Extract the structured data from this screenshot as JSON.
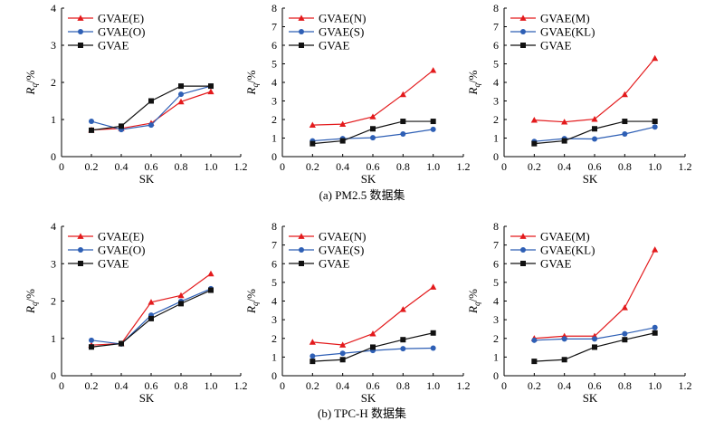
{
  "captions": {
    "a": "(a) PM2.5 数据集",
    "b": "(b) TPC-H 数据集"
  },
  "colors": {
    "red": "#e31a1c",
    "blue": "#2e5fb5",
    "black": "#111111"
  },
  "chart_data": [
    {
      "type": "line",
      "xlabel": "SK",
      "ylabel": "R_q/%",
      "xlim": [
        0,
        1.2
      ],
      "ylim": [
        0,
        4
      ],
      "xticks": [
        "0",
        "0.2",
        "0.4",
        "0.6",
        "0.8",
        "1.0",
        "1.2"
      ],
      "yticks": [
        "0",
        "1",
        "2",
        "3",
        "4"
      ],
      "legend": "top-left",
      "x": [
        0.2,
        0.4,
        0.6,
        0.8,
        1.0
      ],
      "series": [
        {
          "name": "GVAE(E)",
          "color": "#e31a1c",
          "marker": "triangle",
          "values": [
            0.72,
            0.76,
            0.9,
            1.48,
            1.75
          ]
        },
        {
          "name": "GVAE(O)",
          "color": "#2e5fb5",
          "marker": "circle",
          "values": [
            0.95,
            0.73,
            0.85,
            1.68,
            1.9
          ]
        },
        {
          "name": "GVAE",
          "color": "#111111",
          "marker": "square",
          "values": [
            0.71,
            0.82,
            1.5,
            1.9,
            1.9
          ]
        }
      ]
    },
    {
      "type": "line",
      "xlabel": "SK",
      "ylabel": "R_q/%",
      "xlim": [
        0,
        1.2
      ],
      "ylim": [
        0,
        8
      ],
      "xticks": [
        "0",
        "0.2",
        "0.4",
        "0.6",
        "0.8",
        "1.0",
        "1.2"
      ],
      "yticks": [
        "0",
        "1",
        "2",
        "3",
        "4",
        "5",
        "6",
        "7",
        "8"
      ],
      "legend": "top-left",
      "x": [
        0.2,
        0.4,
        0.6,
        0.8,
        1.0
      ],
      "series": [
        {
          "name": "GVAE(N)",
          "color": "#e31a1c",
          "marker": "triangle",
          "values": [
            1.7,
            1.75,
            2.15,
            3.35,
            4.65
          ]
        },
        {
          "name": "GVAE(S)",
          "color": "#2e5fb5",
          "marker": "circle",
          "values": [
            0.85,
            0.97,
            1.02,
            1.22,
            1.47
          ]
        },
        {
          "name": "GVAE",
          "color": "#111111",
          "marker": "square",
          "values": [
            0.7,
            0.85,
            1.5,
            1.9,
            1.9
          ]
        }
      ]
    },
    {
      "type": "line",
      "xlabel": "SK",
      "ylabel": "R_q/%",
      "xlim": [
        0,
        1.2
      ],
      "ylim": [
        0,
        8
      ],
      "xticks": [
        "0",
        "0.2",
        "0.4",
        "0.6",
        "0.8",
        "1.0",
        "1.2"
      ],
      "yticks": [
        "0",
        "1",
        "2",
        "3",
        "4",
        "5",
        "6",
        "7",
        "8"
      ],
      "legend": "top-left",
      "x": [
        0.2,
        0.4,
        0.6,
        0.8,
        1.0
      ],
      "series": [
        {
          "name": "GVAE(M)",
          "color": "#e31a1c",
          "marker": "triangle",
          "values": [
            1.97,
            1.87,
            2.02,
            3.35,
            5.3
          ]
        },
        {
          "name": "GVAE(KL)",
          "color": "#2e5fb5",
          "marker": "circle",
          "values": [
            0.82,
            0.97,
            0.95,
            1.22,
            1.6
          ]
        },
        {
          "name": "GVAE",
          "color": "#111111",
          "marker": "square",
          "values": [
            0.7,
            0.85,
            1.5,
            1.9,
            1.9
          ]
        }
      ]
    },
    {
      "type": "line",
      "xlabel": "SK",
      "ylabel": "R_q/%",
      "xlim": [
        0,
        1.2
      ],
      "ylim": [
        0,
        4
      ],
      "xticks": [
        "0",
        "0.2",
        "0.4",
        "0.6",
        "0.8",
        "1.0",
        "1.2"
      ],
      "yticks": [
        "0",
        "1",
        "2",
        "3",
        "4"
      ],
      "legend": "top-left",
      "x": [
        0.2,
        0.4,
        0.6,
        0.8,
        1.0
      ],
      "series": [
        {
          "name": "GVAE(E)",
          "color": "#e31a1c",
          "marker": "triangle",
          "values": [
            0.82,
            0.86,
            1.97,
            2.15,
            2.73
          ]
        },
        {
          "name": "GVAE(O)",
          "color": "#2e5fb5",
          "marker": "circle",
          "values": [
            0.95,
            0.85,
            1.62,
            1.99,
            2.33
          ]
        },
        {
          "name": "GVAE",
          "color": "#111111",
          "marker": "square",
          "values": [
            0.77,
            0.86,
            1.53,
            1.93,
            2.29
          ]
        }
      ]
    },
    {
      "type": "line",
      "xlabel": "SK",
      "ylabel": "R_q/%",
      "xlim": [
        0,
        1.2
      ],
      "ylim": [
        0,
        8
      ],
      "xticks": [
        "0",
        "0.2",
        "0.4",
        "0.6",
        "0.8",
        "1.0",
        "1.2"
      ],
      "yticks": [
        "0",
        "1",
        "2",
        "3",
        "4",
        "5",
        "6",
        "7",
        "8"
      ],
      "legend": "top-left",
      "x": [
        0.2,
        0.4,
        0.6,
        0.8,
        1.0
      ],
      "series": [
        {
          "name": "GVAE(N)",
          "color": "#e31a1c",
          "marker": "triangle",
          "values": [
            1.8,
            1.65,
            2.25,
            3.55,
            4.75
          ]
        },
        {
          "name": "GVAE(S)",
          "color": "#2e5fb5",
          "marker": "circle",
          "values": [
            1.05,
            1.2,
            1.35,
            1.45,
            1.48
          ]
        },
        {
          "name": "GVAE",
          "color": "#111111",
          "marker": "square",
          "values": [
            0.77,
            0.86,
            1.53,
            1.93,
            2.29
          ]
        }
      ]
    },
    {
      "type": "line",
      "xlabel": "SK",
      "ylabel": "R_q/%",
      "xlim": [
        0,
        1.2
      ],
      "ylim": [
        0,
        8
      ],
      "xticks": [
        "0",
        "0.2",
        "0.4",
        "0.6",
        "0.8",
        "1.0",
        "1.2"
      ],
      "yticks": [
        "0",
        "1",
        "2",
        "3",
        "4",
        "5",
        "6",
        "7",
        "8"
      ],
      "legend": "top-left",
      "x": [
        0.2,
        0.4,
        0.6,
        0.8,
        1.0
      ],
      "series": [
        {
          "name": "GVAE(M)",
          "color": "#e31a1c",
          "marker": "triangle",
          "values": [
            2.0,
            2.12,
            2.12,
            3.65,
            6.75
          ]
        },
        {
          "name": "GVAE(KL)",
          "color": "#2e5fb5",
          "marker": "circle",
          "values": [
            1.9,
            1.97,
            1.97,
            2.25,
            2.58
          ]
        },
        {
          "name": "GVAE",
          "color": "#111111",
          "marker": "square",
          "values": [
            0.77,
            0.86,
            1.53,
            1.93,
            2.29
          ]
        }
      ]
    }
  ]
}
